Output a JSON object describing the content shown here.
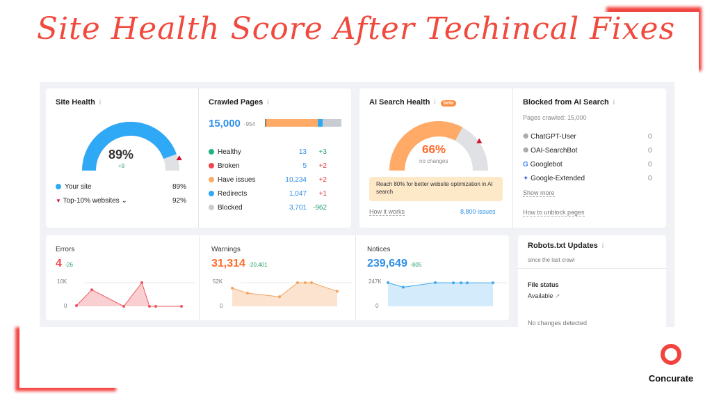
{
  "title": "Site Health Score After Techincal Fixes",
  "colors": {
    "accent": "#f2433f",
    "blue": "#2fa8f5",
    "orange": "#ffaa66",
    "red": "#f0555d"
  },
  "site_health": {
    "title": "Site Health",
    "percent": 89,
    "percent_label": "89%",
    "delta": "+9",
    "your_site_label": "Your site",
    "your_site_value": "89%",
    "top10_label": "Top-10% websites",
    "top10_value": "92%",
    "top10_percent": 92
  },
  "crawled": {
    "title": "Crawled Pages",
    "total": "15,000",
    "delta": "-954",
    "rows": [
      {
        "label": "Healthy",
        "value": "13",
        "delta": "+3",
        "color": "#1fb57a",
        "dc": "green"
      },
      {
        "label": "Broken",
        "value": "5",
        "delta": "+2",
        "color": "#f0454d",
        "dc": "red"
      },
      {
        "label": "Have issues",
        "value": "10,234",
        "delta": "+2",
        "color": "#ffaa66",
        "dc": "red"
      },
      {
        "label": "Redirects",
        "value": "1,047",
        "delta": "+1",
        "color": "#2fa8f5",
        "dc": "red"
      },
      {
        "label": "Blocked",
        "value": "3,701",
        "delta": "-962",
        "color": "#c8cbd0",
        "dc": "green"
      }
    ]
  },
  "ai_health": {
    "title": "AI Search Health",
    "badge": "beta",
    "percent": 66,
    "percent_label": "66%",
    "sub": "no changes",
    "target_percent": 80,
    "tip": "Reach 80% for better website optimization in AI search",
    "how": "How it works",
    "issues": "8,800 issues"
  },
  "blocked_ai": {
    "title": "Blocked from AI Search",
    "pages": "Pages crawled: 15,000",
    "bots": [
      {
        "name": "ChatGPT-User",
        "value": "0",
        "icon": "openai-icon"
      },
      {
        "name": "OAI-SearchBot",
        "value": "0",
        "icon": "openai-icon"
      },
      {
        "name": "Googlebot",
        "value": "0",
        "icon": "google-icon"
      },
      {
        "name": "Google-Extended",
        "value": "0",
        "icon": "gemini-icon"
      }
    ],
    "show_more": "Show more",
    "unblock": "How to unblock pages"
  },
  "chart_data": [
    {
      "type": "area",
      "title": "Errors",
      "value": "4",
      "delta": "-26",
      "ylim": [
        0,
        10000
      ],
      "yticks": [
        "0",
        "10K"
      ],
      "values": [
        300,
        7000,
        0,
        10000,
        0,
        0,
        0
      ],
      "color": "#f0555d",
      "fill": "#f9cfd1"
    },
    {
      "type": "area",
      "title": "Warnings",
      "value": "31,314",
      "delta": "-20,401",
      "ylim": [
        0,
        52000
      ],
      "yticks": [
        "0",
        "52K"
      ],
      "values": [
        40000,
        29000,
        21000,
        52000,
        52000,
        52000,
        33000
      ],
      "color": "#f5a35f",
      "fill": "#fbe3cf"
    },
    {
      "type": "area",
      "title": "Notices",
      "value": "239,649",
      "delta": "-805",
      "ylim": [
        0,
        247000
      ],
      "yticks": [
        "0",
        "247K"
      ],
      "values": [
        247000,
        200000,
        247000,
        245000,
        245000,
        245000,
        245000
      ],
      "color": "#3ea9f0",
      "fill": "#d3ebfb"
    }
  ],
  "robots": {
    "title": "Robots.txt Updates",
    "sub": "since the last crawl",
    "file_status": "File status",
    "available": "Available",
    "no_changes": "No changes detected"
  },
  "logo": {
    "name": "Concurate"
  }
}
